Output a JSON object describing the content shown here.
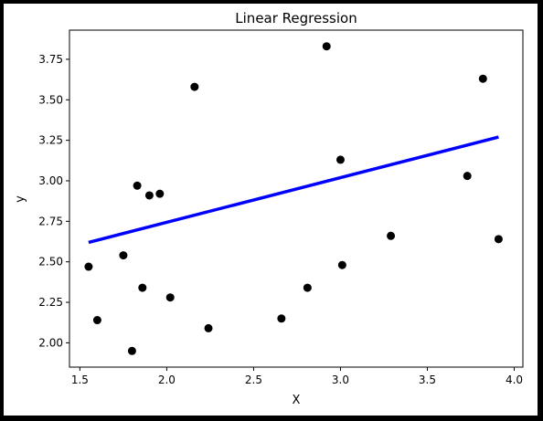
{
  "chart_data": {
    "type": "scatter",
    "title": "Linear Regression",
    "xlabel": "X",
    "ylabel": "y",
    "xlim": [
      1.44,
      4.05
    ],
    "ylim": [
      1.85,
      3.93
    ],
    "grid": false,
    "x_ticks": [
      1.5,
      2.0,
      2.5,
      3.0,
      3.5,
      4.0
    ],
    "x_tick_labels": [
      "1.5",
      "2.0",
      "2.5",
      "3.0",
      "3.5",
      "4.0"
    ],
    "y_ticks": [
      2.0,
      2.25,
      2.5,
      2.75,
      3.0,
      3.25,
      3.5,
      3.75
    ],
    "y_tick_labels": [
      "2.00",
      "2.25",
      "2.50",
      "2.75",
      "3.00",
      "3.25",
      "3.50",
      "3.75"
    ],
    "points": [
      {
        "x": 1.55,
        "y": 2.47
      },
      {
        "x": 1.6,
        "y": 2.14
      },
      {
        "x": 1.75,
        "y": 2.54
      },
      {
        "x": 1.8,
        "y": 1.95
      },
      {
        "x": 1.83,
        "y": 2.97
      },
      {
        "x": 1.86,
        "y": 2.34
      },
      {
        "x": 1.9,
        "y": 2.91
      },
      {
        "x": 1.96,
        "y": 2.92
      },
      {
        "x": 2.02,
        "y": 2.28
      },
      {
        "x": 2.16,
        "y": 3.58
      },
      {
        "x": 2.24,
        "y": 2.09
      },
      {
        "x": 2.66,
        "y": 2.15
      },
      {
        "x": 2.81,
        "y": 2.34
      },
      {
        "x": 2.92,
        "y": 3.83
      },
      {
        "x": 3.0,
        "y": 3.13
      },
      {
        "x": 3.01,
        "y": 2.48
      },
      {
        "x": 3.29,
        "y": 2.66
      },
      {
        "x": 3.73,
        "y": 3.03
      },
      {
        "x": 3.82,
        "y": 3.63
      },
      {
        "x": 3.91,
        "y": 2.64
      }
    ],
    "regression_line": {
      "x": [
        1.55,
        3.91
      ],
      "y": [
        2.62,
        3.27
      ]
    },
    "colors": {
      "points": "#000000",
      "line": "#0000ff",
      "background": "#ffffff",
      "frame": "#000000"
    }
  }
}
